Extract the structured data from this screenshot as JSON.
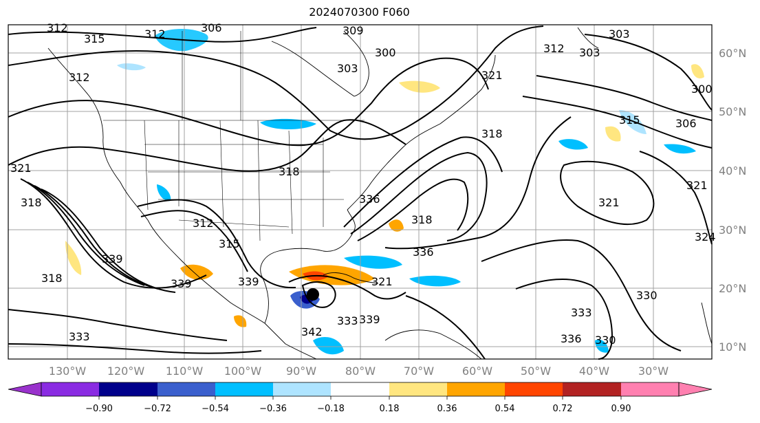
{
  "title": "2024070300 F060",
  "map": {
    "lat_labels": [
      "60°N",
      "50°N",
      "40°N",
      "30°N",
      "20°N",
      "10°N"
    ],
    "lon_labels": [
      "130°W",
      "120°W",
      "110°W",
      "100°W",
      "90°W",
      "80°W",
      "70°W",
      "60°W",
      "50°W",
      "40°W",
      "30°W"
    ],
    "contour_labels": [
      "312",
      "315",
      "312",
      "306",
      "309",
      "300",
      "303",
      "303",
      "312",
      "303",
      "300",
      "306",
      "315",
      "312",
      "321",
      "321",
      "318",
      "318",
      "333",
      "336",
      "339",
      "318",
      "339",
      "312",
      "315",
      "321",
      "339",
      "342",
      "339",
      "336",
      "333",
      "330",
      "336",
      "321",
      "324",
      "318",
      "330",
      "333",
      "318",
      "321"
    ],
    "colors": {
      "grid": "#a0a0a0",
      "contour": "#000000",
      "coast": "#000000"
    }
  },
  "colorbar": {
    "ticks": [
      "−0.90",
      "−0.72",
      "−0.54",
      "−0.36",
      "−0.18",
      "0.18",
      "0.36",
      "0.54",
      "0.72",
      "0.90"
    ],
    "colors": [
      "#9932cc",
      "#8a2be2",
      "#00008b",
      "#3a5fcd",
      "#00bfff",
      "#aee4ff",
      "#ffffff",
      "#ffe680",
      "#ffa500",
      "#ff4500",
      "#b22222",
      "#ff80b0"
    ]
  }
}
